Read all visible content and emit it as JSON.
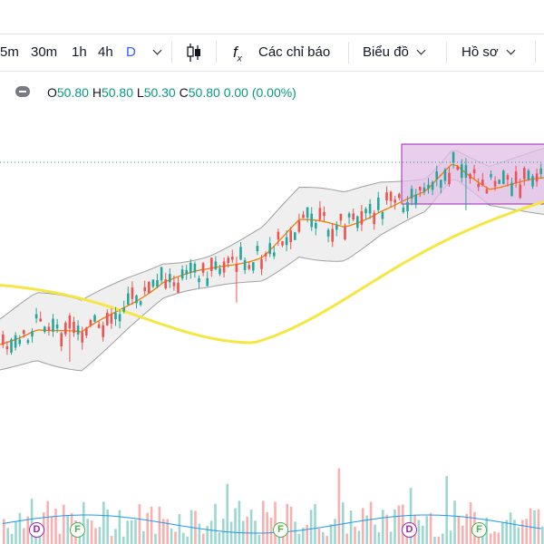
{
  "toolbar": {
    "intervals": [
      "5m",
      "30m",
      "1h",
      "4h",
      "D"
    ],
    "active_interval": "D",
    "indicators_label": "Các chỉ báo",
    "chart_type_label": "Biểu đồ",
    "profile_label": "Hồ sơ"
  },
  "legend": {
    "open_label": "O",
    "open": "50.80",
    "high_label": "H",
    "high": "50.80",
    "low_label": "L",
    "low": "50.30",
    "close_label": "C",
    "close": "50.80",
    "change": "0.00",
    "change_pct": "(0.00%)"
  },
  "events": {
    "d_label": "D",
    "f_label": "F"
  },
  "colors": {
    "up": "#26a69a",
    "down": "#ef5350",
    "ma_fast": "#f57c00",
    "ma_slow": "#f5e642",
    "bands": "#9e9e9e",
    "band_fill": "#efefef",
    "rect_fill": "#e1bee7",
    "rect_border": "#9c27b0",
    "accent": "#2962ff"
  },
  "chart_data": {
    "type": "candlestick",
    "note_series": [
      "price",
      "ma20",
      "bollinger_upper",
      "bollinger_lower",
      "ma_long",
      "volume"
    ],
    "visible_range_close": [
      39.5,
      51.5
    ]
  }
}
